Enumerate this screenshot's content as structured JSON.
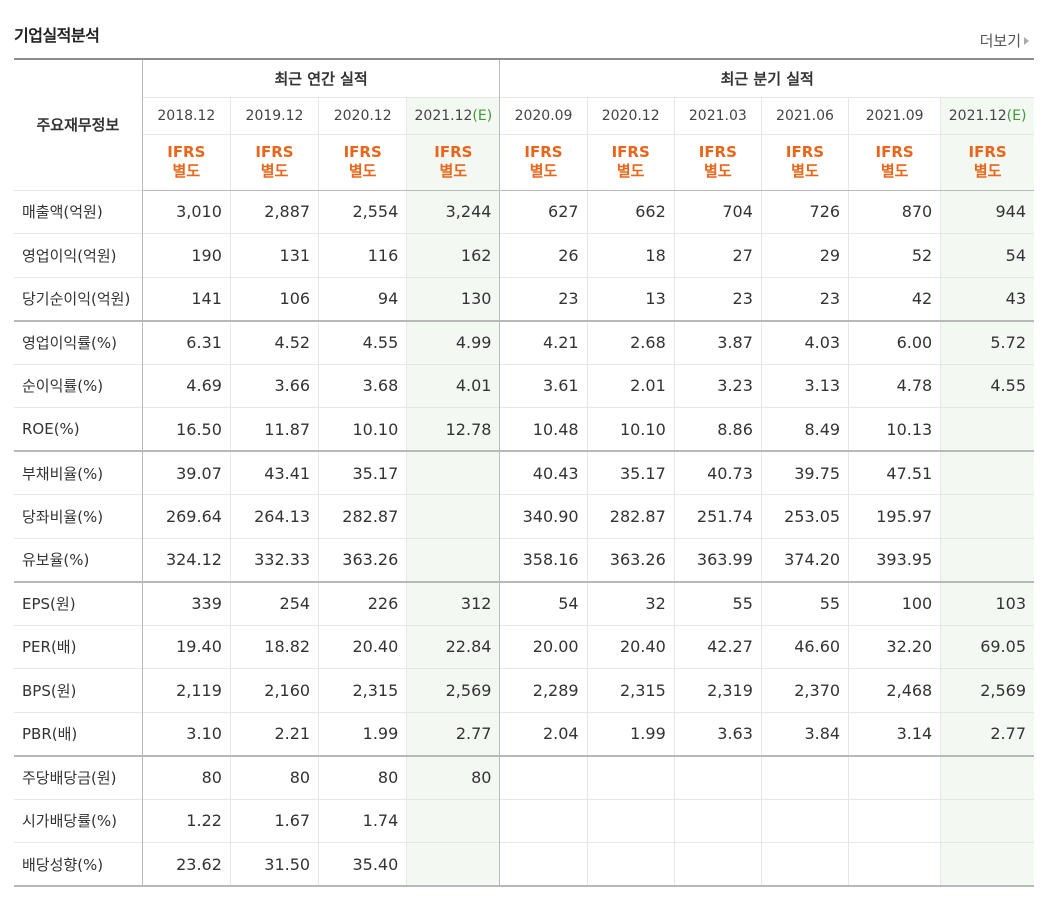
{
  "section_title": "기업실적분석",
  "more_label": "더보기",
  "table": {
    "row_header": "주요재무정보",
    "group_annual": "최근 연간 실적",
    "group_quarter": "최근 분기 실적",
    "periods": [
      {
        "date": "2018.12",
        "est": "",
        "type1": "IFRS",
        "type2": "별도",
        "estimate": false
      },
      {
        "date": "2019.12",
        "est": "",
        "type1": "IFRS",
        "type2": "별도",
        "estimate": false
      },
      {
        "date": "2020.12",
        "est": "",
        "type1": "IFRS",
        "type2": "별도",
        "estimate": false
      },
      {
        "date": "2021.12",
        "est": "(E)",
        "type1": "IFRS",
        "type2": "별도",
        "estimate": true
      },
      {
        "date": "2020.09",
        "est": "",
        "type1": "IFRS",
        "type2": "별도",
        "estimate": false
      },
      {
        "date": "2020.12",
        "est": "",
        "type1": "IFRS",
        "type2": "별도",
        "estimate": false
      },
      {
        "date": "2021.03",
        "est": "",
        "type1": "IFRS",
        "type2": "별도",
        "estimate": false
      },
      {
        "date": "2021.06",
        "est": "",
        "type1": "IFRS",
        "type2": "별도",
        "estimate": false
      },
      {
        "date": "2021.09",
        "est": "",
        "type1": "IFRS",
        "type2": "별도",
        "estimate": false
      },
      {
        "date": "2021.12",
        "est": "(E)",
        "type1": "IFRS",
        "type2": "별도",
        "estimate": true
      }
    ],
    "rows": [
      {
        "label": "매출액(억원)",
        "values": [
          "3,010",
          "2,887",
          "2,554",
          "3,244",
          "627",
          "662",
          "704",
          "726",
          "870",
          "944"
        ]
      },
      {
        "label": "영업이익(억원)",
        "values": [
          "190",
          "131",
          "116",
          "162",
          "26",
          "18",
          "27",
          "29",
          "52",
          "54"
        ]
      },
      {
        "label": "당기순이익(억원)",
        "values": [
          "141",
          "106",
          "94",
          "130",
          "23",
          "13",
          "23",
          "23",
          "42",
          "43"
        ]
      },
      {
        "label": "영업이익률(%)",
        "values": [
          "6.31",
          "4.52",
          "4.55",
          "4.99",
          "4.21",
          "2.68",
          "3.87",
          "4.03",
          "6.00",
          "5.72"
        ],
        "group_start": true
      },
      {
        "label": "순이익률(%)",
        "values": [
          "4.69",
          "3.66",
          "3.68",
          "4.01",
          "3.61",
          "2.01",
          "3.23",
          "3.13",
          "4.78",
          "4.55"
        ]
      },
      {
        "label": "ROE(%)",
        "values": [
          "16.50",
          "11.87",
          "10.10",
          "12.78",
          "10.48",
          "10.10",
          "8.86",
          "8.49",
          "10.13",
          ""
        ]
      },
      {
        "label": "부채비율(%)",
        "values": [
          "39.07",
          "43.41",
          "35.17",
          "",
          "40.43",
          "35.17",
          "40.73",
          "39.75",
          "47.51",
          ""
        ],
        "group_start": true
      },
      {
        "label": "당좌비율(%)",
        "values": [
          "269.64",
          "264.13",
          "282.87",
          "",
          "340.90",
          "282.87",
          "251.74",
          "253.05",
          "195.97",
          ""
        ]
      },
      {
        "label": "유보율(%)",
        "values": [
          "324.12",
          "332.33",
          "363.26",
          "",
          "358.16",
          "363.26",
          "363.99",
          "374.20",
          "393.95",
          ""
        ]
      },
      {
        "label": "EPS(원)",
        "values": [
          "339",
          "254",
          "226",
          "312",
          "54",
          "32",
          "55",
          "55",
          "100",
          "103"
        ],
        "group_start": true
      },
      {
        "label": "PER(배)",
        "values": [
          "19.40",
          "18.82",
          "20.40",
          "22.84",
          "20.00",
          "20.40",
          "42.27",
          "46.60",
          "32.20",
          "69.05"
        ]
      },
      {
        "label": "BPS(원)",
        "values": [
          "2,119",
          "2,160",
          "2,315",
          "2,569",
          "2,289",
          "2,315",
          "2,319",
          "2,370",
          "2,468",
          "2,569"
        ]
      },
      {
        "label": "PBR(배)",
        "values": [
          "3.10",
          "2.21",
          "1.99",
          "2.77",
          "2.04",
          "1.99",
          "3.63",
          "3.84",
          "3.14",
          "2.77"
        ]
      },
      {
        "label": "주당배당금(원)",
        "values": [
          "80",
          "80",
          "80",
          "80",
          "",
          "",
          "",
          "",
          "",
          ""
        ],
        "group_start": true
      },
      {
        "label": "시가배당률(%)",
        "values": [
          "1.22",
          "1.67",
          "1.74",
          "",
          "",
          "",
          "",
          "",
          "",
          ""
        ]
      },
      {
        "label": "배당성향(%)",
        "values": [
          "23.62",
          "31.50",
          "35.40",
          "",
          "",
          "",
          "",
          "",
          "",
          ""
        ],
        "last": true
      }
    ]
  },
  "colors": {
    "ifrs_orange": "#e8651a",
    "estimate_green": "#3a9a3a",
    "estimate_bg": "#f3f8f3"
  }
}
